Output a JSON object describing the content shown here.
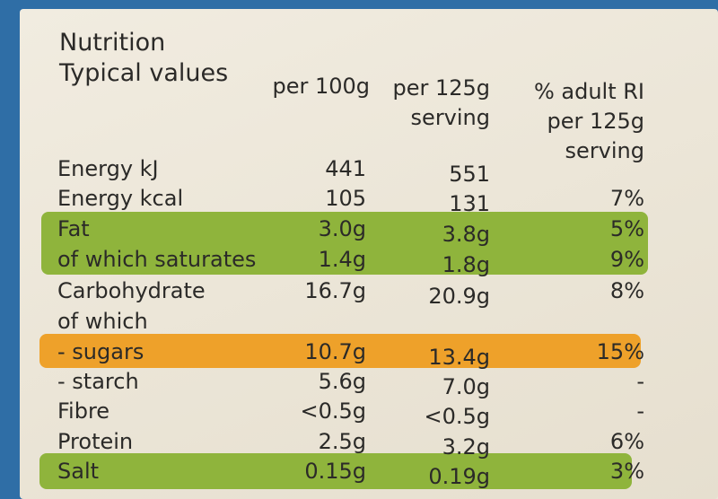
{
  "header": {
    "title": "Nutrition",
    "subtitle": "Typical values"
  },
  "columns": [
    [
      "per 100g"
    ],
    [
      "per 125g",
      "serving"
    ],
    [
      "% adult RI",
      "per 125g",
      "serving"
    ]
  ],
  "table": {
    "rows": [
      [
        "Energy kJ",
        "441",
        "551",
        null
      ],
      [
        "Energy kcal",
        "105",
        "131",
        "7%"
      ],
      [
        "Fat",
        "3.0g",
        "3.8g",
        "5%"
      ],
      [
        "of which saturates",
        "1.4g",
        "1.8g",
        "9%"
      ],
      [
        "Carbohydrate",
        "16.7g",
        "20.9g",
        "8%"
      ],
      [
        "of which",
        null,
        null,
        null
      ],
      [
        "- sugars",
        "10.7g",
        "13.4g",
        "15%"
      ],
      [
        "- starch",
        "5.6g",
        "7.0g",
        "-"
      ],
      [
        "Fibre",
        "<0.5g",
        "<0.5g",
        "-"
      ],
      [
        "Protein",
        "2.5g",
        "3.2g",
        "6%"
      ],
      [
        "Salt",
        "0.15g",
        "0.19g",
        "3%"
      ]
    ]
  }
}
